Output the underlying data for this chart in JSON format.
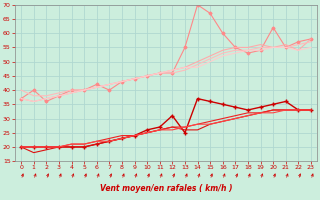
{
  "xlabel": "Vent moyen/en rafales ( km/h )",
  "background_color": "#cceedd",
  "grid_color": "#aaddcc",
  "xlim": [
    -0.5,
    23.5
  ],
  "ylim": [
    15,
    70
  ],
  "yticks": [
    15,
    20,
    25,
    30,
    35,
    40,
    45,
    50,
    55,
    60,
    65,
    70
  ],
  "xticks": [
    0,
    1,
    2,
    3,
    4,
    5,
    6,
    7,
    8,
    9,
    10,
    11,
    12,
    13,
    14,
    15,
    16,
    17,
    18,
    19,
    20,
    21,
    22,
    23
  ],
  "series_light": [
    {
      "x": [
        0,
        1,
        2,
        3,
        4,
        5,
        6,
        7,
        8,
        9,
        10,
        11,
        12,
        13,
        14,
        15,
        16,
        17,
        18,
        19,
        20,
        21,
        22,
        23
      ],
      "y": [
        37,
        40,
        36,
        38,
        40,
        40,
        42,
        40,
        43,
        44,
        45,
        46,
        46,
        55,
        70,
        67,
        60,
        55,
        53,
        54,
        62,
        55,
        57,
        58
      ],
      "color": "#ff8888",
      "lw": 0.8,
      "marker": "D",
      "ms": 1.5
    },
    {
      "x": [
        0,
        1,
        2,
        3,
        4,
        5,
        6,
        7,
        8,
        9,
        10,
        11,
        12,
        13,
        14,
        15,
        16,
        17,
        18,
        19,
        20,
        21,
        22,
        23
      ],
      "y": [
        37,
        36,
        37,
        38,
        39,
        40,
        41,
        42,
        43,
        44,
        45,
        46,
        47,
        48,
        50,
        52,
        54,
        55,
        55,
        56,
        55,
        56,
        54,
        58
      ],
      "color": "#ffaaaa",
      "lw": 0.8,
      "marker": null,
      "ms": 0
    },
    {
      "x": [
        0,
        1,
        2,
        3,
        4,
        5,
        6,
        7,
        8,
        9,
        10,
        11,
        12,
        13,
        14,
        15,
        16,
        17,
        18,
        19,
        20,
        21,
        22,
        23
      ],
      "y": [
        40,
        38,
        38,
        39,
        40,
        40,
        41,
        42,
        43,
        44,
        45,
        46,
        46,
        47,
        49,
        51,
        53,
        54,
        54,
        55,
        55,
        55,
        56,
        57
      ],
      "color": "#ffbbbb",
      "lw": 0.8,
      "marker": null,
      "ms": 0
    },
    {
      "x": [
        0,
        1,
        2,
        3,
        4,
        5,
        6,
        7,
        8,
        9,
        10,
        11,
        12,
        13,
        14,
        15,
        16,
        17,
        18,
        19,
        20,
        21,
        22,
        23
      ],
      "y": [
        37,
        36,
        37,
        38,
        39,
        40,
        41,
        42,
        43,
        44,
        45,
        46,
        47,
        48,
        48,
        50,
        52,
        53,
        54,
        54,
        55,
        55,
        54,
        55
      ],
      "color": "#ffcccc",
      "lw": 0.8,
      "marker": null,
      "ms": 0
    }
  ],
  "series_dark": [
    {
      "x": [
        0,
        1,
        2,
        3,
        4,
        5,
        6,
        7,
        8,
        9,
        10,
        11,
        12,
        13,
        14,
        15,
        16,
        17,
        18,
        19,
        20,
        21,
        22,
        23
      ],
      "y": [
        20,
        20,
        20,
        20,
        20,
        20,
        21,
        22,
        23,
        24,
        26,
        27,
        31,
        25,
        37,
        36,
        35,
        34,
        33,
        34,
        35,
        36,
        33,
        33
      ],
      "color": "#cc0000",
      "lw": 1.0,
      "marker": "+",
      "ms": 3.0
    },
    {
      "x": [
        0,
        1,
        2,
        3,
        4,
        5,
        6,
        7,
        8,
        9,
        10,
        11,
        12,
        13,
        14,
        15,
        16,
        17,
        18,
        19,
        20,
        21,
        22,
        23
      ],
      "y": [
        20,
        18,
        19,
        20,
        20,
        20,
        21,
        22,
        23,
        24,
        25,
        26,
        27,
        26,
        26,
        28,
        29,
        30,
        31,
        32,
        33,
        33,
        33,
        33
      ],
      "color": "#dd1111",
      "lw": 0.8,
      "marker": null,
      "ms": 0
    },
    {
      "x": [
        0,
        1,
        2,
        3,
        4,
        5,
        6,
        7,
        8,
        9,
        10,
        11,
        12,
        13,
        14,
        15,
        16,
        17,
        18,
        19,
        20,
        21,
        22,
        23
      ],
      "y": [
        20,
        20,
        20,
        20,
        21,
        21,
        22,
        23,
        24,
        24,
        25,
        26,
        27,
        27,
        28,
        29,
        30,
        31,
        32,
        32,
        33,
        33,
        33,
        33
      ],
      "color": "#ee2222",
      "lw": 0.8,
      "marker": null,
      "ms": 0
    },
    {
      "x": [
        0,
        1,
        2,
        3,
        4,
        5,
        6,
        7,
        8,
        9,
        10,
        11,
        12,
        13,
        14,
        15,
        16,
        17,
        18,
        19,
        20,
        21,
        22,
        23
      ],
      "y": [
        20,
        20,
        20,
        20,
        21,
        21,
        22,
        22,
        23,
        24,
        25,
        26,
        26,
        27,
        28,
        28,
        29,
        30,
        31,
        32,
        32,
        33,
        33,
        33
      ],
      "color": "#ff4444",
      "lw": 0.8,
      "marker": null,
      "ms": 0
    }
  ],
  "tick_color": "#cc0000",
  "tick_fontsize": 4.5,
  "xlabel_fontsize": 5.5,
  "xlabel_color": "#cc0000"
}
